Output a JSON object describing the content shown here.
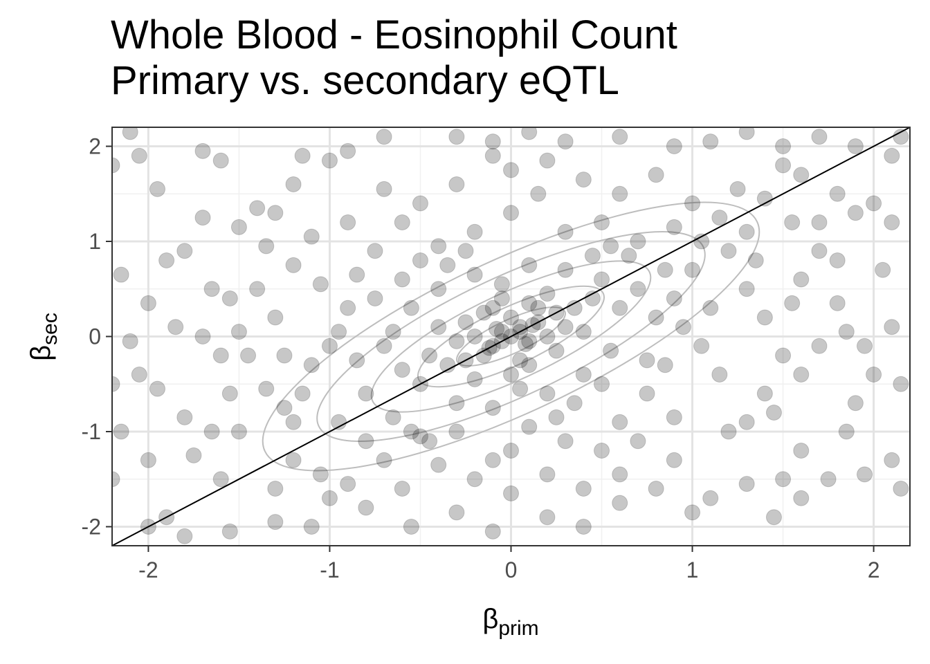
{
  "chart_data": {
    "type": "scatter",
    "title": "Whole Blood - Eosinophil Count",
    "subtitle": "Primary vs. secondary eQTL",
    "xlabel": {
      "symbol": "β",
      "subscript": "prim"
    },
    "ylabel": {
      "symbol": "β",
      "subscript": "sec"
    },
    "xlim": [
      -2.2,
      2.2
    ],
    "ylim": [
      -2.2,
      2.2
    ],
    "xticks": [
      -2,
      -1,
      0,
      1,
      2
    ],
    "yticks": [
      -2,
      -1,
      0,
      1,
      2
    ],
    "xtick_labels": [
      "-2",
      "-1",
      "0",
      "1",
      "2"
    ],
    "ytick_labels": [
      "-2",
      "-1",
      "0",
      "1",
      "2"
    ],
    "grid": true,
    "reference_line": {
      "slope": 1,
      "intercept": 0,
      "color": "#000000"
    },
    "density_contours": {
      "levels": [
        0.35,
        0.6,
        0.9,
        1.25,
        1.6
      ],
      "color": "#bdbdbd",
      "center": [
        0,
        0
      ],
      "correlation": 0.3
    },
    "point_style": {
      "color": "#000000",
      "opacity": 0.22
    },
    "points": [
      [
        -2.1,
        2.15
      ],
      [
        -2.05,
        1.9
      ],
      [
        -1.95,
        1.55
      ],
      [
        -2.2,
        1.8
      ],
      [
        -1.7,
        1.95
      ],
      [
        -1.6,
        1.85
      ],
      [
        -1.3,
        1.3
      ],
      [
        -1.2,
        1.6
      ],
      [
        -1.15,
        1.9
      ],
      [
        -1.0,
        1.85
      ],
      [
        -0.9,
        1.95
      ],
      [
        -0.7,
        2.1
      ],
      [
        -0.3,
        2.1
      ],
      [
        -0.1,
        2.05
      ],
      [
        0.1,
        2.15
      ],
      [
        0.3,
        2.05
      ],
      [
        0.6,
        2.1
      ],
      [
        0.9,
        2.0
      ],
      [
        1.1,
        2.05
      ],
      [
        1.3,
        2.15
      ],
      [
        1.5,
        2.0
      ],
      [
        1.7,
        2.1
      ],
      [
        1.9,
        2.0
      ],
      [
        2.1,
        1.9
      ],
      [
        2.15,
        2.1
      ],
      [
        1.5,
        1.8
      ],
      [
        1.6,
        1.7
      ],
      [
        1.8,
        1.5
      ],
      [
        2.0,
        1.4
      ],
      [
        2.1,
        1.2
      ],
      [
        1.9,
        1.3
      ],
      [
        1.4,
        1.45
      ],
      [
        1.25,
        1.55
      ],
      [
        1.55,
        1.2
      ],
      [
        -2.15,
        0.65
      ],
      [
        -1.9,
        0.8
      ],
      [
        -2.0,
        0.35
      ],
      [
        -1.85,
        0.1
      ],
      [
        -1.65,
        0.5
      ],
      [
        -1.55,
        0.4
      ],
      [
        -1.5,
        1.15
      ],
      [
        -1.7,
        1.25
      ],
      [
        -2.1,
        -0.05
      ],
      [
        -2.05,
        -0.4
      ],
      [
        -1.95,
        -0.55
      ],
      [
        -2.2,
        -0.5
      ],
      [
        -1.8,
        -0.85
      ],
      [
        -1.65,
        -1.0
      ],
      [
        -1.5,
        -1.0
      ],
      [
        -1.75,
        -1.25
      ],
      [
        -1.6,
        -1.5
      ],
      [
        -2.0,
        -1.3
      ],
      [
        -2.15,
        -1.0
      ],
      [
        -2.2,
        -1.5
      ],
      [
        -1.9,
        -1.9
      ],
      [
        -2.0,
        -2.0
      ],
      [
        -1.8,
        -2.1
      ],
      [
        -1.55,
        -2.05
      ],
      [
        -1.3,
        -1.95
      ],
      [
        2.1,
        0.1
      ],
      [
        2.0,
        -0.4
      ],
      [
        1.95,
        -0.1
      ],
      [
        1.85,
        0.05
      ],
      [
        2.15,
        -0.5
      ],
      [
        2.1,
        -1.3
      ],
      [
        2.15,
        -1.6
      ],
      [
        1.95,
        -1.45
      ],
      [
        1.85,
        -1.0
      ],
      [
        1.75,
        -1.5
      ],
      [
        1.6,
        -1.7
      ],
      [
        1.5,
        -1.5
      ],
      [
        1.45,
        -1.9
      ],
      [
        1.3,
        -1.55
      ],
      [
        1.1,
        -1.7
      ],
      [
        1.0,
        -1.85
      ],
      [
        0.8,
        -1.6
      ],
      [
        0.6,
        -1.75
      ],
      [
        0.4,
        -2.0
      ],
      [
        0.2,
        -1.9
      ],
      [
        -0.1,
        -2.05
      ],
      [
        -0.3,
        -1.85
      ],
      [
        -0.55,
        -2.0
      ],
      [
        -0.8,
        -1.8
      ],
      [
        -1.0,
        -1.7
      ],
      [
        -1.1,
        -2.0
      ],
      [
        1.3,
        0.5
      ],
      [
        1.4,
        0.2
      ],
      [
        1.6,
        0.6
      ],
      [
        1.7,
        0.9
      ],
      [
        1.8,
        0.8
      ],
      [
        1.5,
        -0.2
      ],
      [
        1.7,
        -0.1
      ],
      [
        1.6,
        -0.4
      ],
      [
        1.4,
        -0.6
      ],
      [
        1.3,
        -0.9
      ],
      [
        1.2,
        -1.0
      ],
      [
        1.45,
        -0.8
      ],
      [
        1.8,
        0.35
      ],
      [
        1.55,
        0.35
      ],
      [
        -1.4,
        0.5
      ],
      [
        -1.3,
        0.2
      ],
      [
        -1.25,
        -0.2
      ],
      [
        -1.35,
        -0.55
      ],
      [
        -1.2,
        -0.9
      ],
      [
        -1.1,
        -0.3
      ],
      [
        -1.2,
        0.75
      ],
      [
        -1.1,
        1.05
      ],
      [
        -1.35,
        0.95
      ],
      [
        -1.45,
        -0.2
      ],
      [
        -1.5,
        0.05
      ],
      [
        -0.05,
        0.05
      ],
      [
        0.05,
        0.1
      ],
      [
        0.1,
        -0.05
      ],
      [
        -0.1,
        -0.1
      ],
      [
        0.0,
        0.2
      ],
      [
        0.15,
        0.15
      ],
      [
        -0.2,
        0.0
      ],
      [
        0.2,
        0.0
      ],
      [
        -0.15,
        0.25
      ],
      [
        0.25,
        0.25
      ],
      [
        -0.25,
        -0.25
      ],
      [
        0.1,
        0.35
      ],
      [
        0.3,
        0.1
      ],
      [
        -0.3,
        -0.05
      ],
      [
        0.05,
        -0.25
      ],
      [
        -0.05,
        0.4
      ],
      [
        0.35,
        0.3
      ],
      [
        -0.35,
        -0.3
      ],
      [
        0.4,
        0.05
      ],
      [
        -0.4,
        0.1
      ],
      [
        0.0,
        -0.4
      ],
      [
        0.2,
        0.45
      ],
      [
        -0.2,
        -0.45
      ],
      [
        0.45,
        0.4
      ],
      [
        -0.45,
        -0.2
      ],
      [
        0.5,
        0.6
      ],
      [
        0.6,
        0.3
      ],
      [
        -0.5,
        -0.5
      ],
      [
        -0.6,
        -0.35
      ],
      [
        0.3,
        0.7
      ],
      [
        -0.3,
        -0.7
      ],
      [
        0.7,
        0.5
      ],
      [
        -0.7,
        -0.1
      ],
      [
        0.55,
        -0.15
      ],
      [
        -0.55,
        0.3
      ],
      [
        0.1,
        0.75
      ],
      [
        -0.1,
        -0.75
      ],
      [
        0.8,
        0.2
      ],
      [
        -0.8,
        -0.6
      ],
      [
        0.2,
        -0.6
      ],
      [
        -0.2,
        0.65
      ],
      [
        0.65,
        0.85
      ],
      [
        -0.65,
        -0.85
      ],
      [
        0.4,
        -0.4
      ],
      [
        -0.4,
        0.5
      ],
      [
        0.9,
        0.4
      ],
      [
        1.0,
        0.7
      ],
      [
        0.85,
        -0.3
      ],
      [
        1.05,
        -0.1
      ],
      [
        0.95,
        0.1
      ],
      [
        -0.9,
        0.3
      ],
      [
        -1.0,
        -0.1
      ],
      [
        -0.85,
        0.65
      ],
      [
        -0.95,
        -0.9
      ],
      [
        -0.75,
        0.9
      ],
      [
        0.75,
        -0.6
      ],
      [
        0.9,
        -0.85
      ],
      [
        1.1,
        0.3
      ],
      [
        -1.05,
        0.55
      ],
      [
        1.15,
        -0.4
      ],
      [
        0.3,
        1.1
      ],
      [
        0.5,
        1.2
      ],
      [
        0.0,
        1.3
      ],
      [
        -0.2,
        1.1
      ],
      [
        -0.4,
        0.95
      ],
      [
        -0.6,
        1.2
      ],
      [
        0.7,
        1.0
      ],
      [
        0.9,
        1.15
      ],
      [
        0.15,
        1.5
      ],
      [
        -0.3,
        1.6
      ],
      [
        -0.7,
        1.55
      ],
      [
        0.6,
        1.5
      ],
      [
        0.4,
        1.65
      ],
      [
        0.0,
        1.75
      ],
      [
        -0.5,
        1.4
      ],
      [
        1.0,
        1.4
      ],
      [
        -0.9,
        1.2
      ],
      [
        0.8,
        1.7
      ],
      [
        -0.1,
        1.9
      ],
      [
        0.2,
        1.85
      ],
      [
        0.3,
        -1.1
      ],
      [
        0.0,
        -1.2
      ],
      [
        -0.3,
        -1.0
      ],
      [
        -0.5,
        -1.05
      ],
      [
        -0.45,
        -1.1
      ],
      [
        -0.55,
        -1.0
      ],
      [
        0.5,
        -1.2
      ],
      [
        0.7,
        -1.1
      ],
      [
        -0.7,
        -1.3
      ],
      [
        0.2,
        -1.45
      ],
      [
        -0.2,
        -1.5
      ],
      [
        -0.1,
        -1.3
      ],
      [
        0.1,
        -0.95
      ],
      [
        -0.8,
        -1.1
      ],
      [
        0.9,
        -1.3
      ],
      [
        -0.6,
        -1.6
      ],
      [
        0.4,
        -1.6
      ],
      [
        0.6,
        -1.45
      ],
      [
        -0.4,
        -1.35
      ],
      [
        0.0,
        -1.65
      ],
      [
        -0.95,
        0.05
      ],
      [
        -0.85,
        -0.25
      ],
      [
        -0.75,
        0.4
      ],
      [
        -0.65,
        0.05
      ],
      [
        -0.6,
        0.6
      ],
      [
        -0.5,
        0.8
      ],
      [
        -0.35,
        0.75
      ],
      [
        -0.25,
        0.9
      ],
      [
        0.25,
        -0.85
      ],
      [
        0.35,
        -0.7
      ],
      [
        0.5,
        -0.5
      ],
      [
        0.6,
        -0.9
      ],
      [
        0.75,
        -0.25
      ],
      [
        0.85,
        0.7
      ],
      [
        0.55,
        0.95
      ],
      [
        0.45,
        0.85
      ],
      [
        -0.05,
        0.55
      ],
      [
        0.05,
        -0.55
      ],
      [
        -0.15,
        -0.2
      ],
      [
        0.15,
        0.3
      ],
      [
        -0.25,
        0.15
      ],
      [
        0.25,
        -0.15
      ],
      [
        -0.1,
        0.3
      ],
      [
        0.1,
        -0.3
      ],
      [
        0.05,
        0.05
      ],
      [
        -0.05,
        -0.05
      ],
      [
        0.12,
        0.12
      ],
      [
        -0.12,
        -0.12
      ],
      [
        0.0,
        0.0
      ],
      [
        0.08,
        -0.08
      ],
      [
        -0.08,
        0.08
      ],
      [
        -1.3,
        -1.6
      ],
      [
        -1.2,
        -1.3
      ],
      [
        -1.05,
        -1.45
      ],
      [
        -0.9,
        -1.55
      ],
      [
        -1.15,
        -0.6
      ],
      [
        -1.25,
        -0.75
      ],
      [
        1.2,
        0.9
      ],
      [
        1.3,
        1.1
      ],
      [
        1.05,
        1.0
      ],
      [
        1.15,
        1.25
      ],
      [
        1.35,
        0.8
      ],
      [
        -1.6,
        -0.2
      ],
      [
        -1.7,
        0.0
      ],
      [
        -1.55,
        -0.6
      ],
      [
        1.6,
        -1.2
      ],
      [
        1.7,
        1.2
      ],
      [
        -1.8,
        0.9
      ],
      [
        -1.4,
        1.35
      ],
      [
        1.9,
        -0.7
      ],
      [
        2.05,
        0.7
      ]
    ]
  }
}
